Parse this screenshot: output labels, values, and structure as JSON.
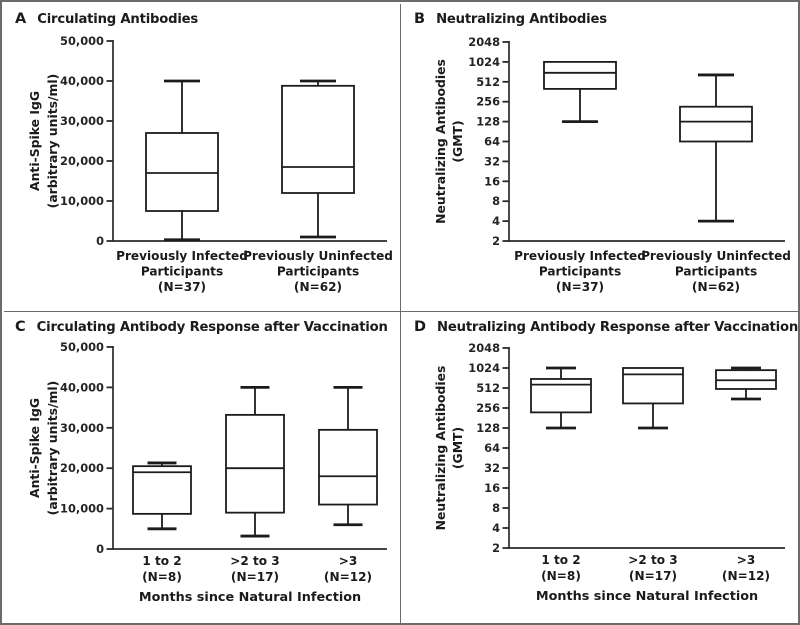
{
  "colors": {
    "background": "#ffffff",
    "frame_border": "#6b6b6b",
    "axis": "#2a2a2a",
    "box_stroke": "#1b1b1b",
    "box_fill": "#ffffff",
    "text": "#1b1b1b"
  },
  "chart_data": [
    {
      "panel_label": "A",
      "title": "Circulating Antibodies",
      "type": "box",
      "scale": "linear",
      "ylim": [
        0,
        50000
      ],
      "yticks": [
        0,
        10000,
        20000,
        30000,
        40000,
        50000
      ],
      "ytick_labels": [
        "0",
        "10,000",
        "20,000",
        "30,000",
        "40,000",
        "50,000"
      ],
      "ylabel_lines": [
        "Anti-Spike IgG",
        "(arbitrary units/ml)"
      ],
      "xlabel": "",
      "legend": "none",
      "grid": false,
      "categories": [
        [
          "Previously Infected",
          "Participants",
          "(N=37)"
        ],
        [
          "Previously Uninfected",
          "Participants",
          "(N=62)"
        ]
      ],
      "boxes": [
        {
          "min": 300,
          "q1": 7500,
          "median": 17000,
          "q3": 27000,
          "max": 40000
        },
        {
          "min": 1000,
          "q1": 12000,
          "median": 18500,
          "q3": 38800,
          "max": 40000
        }
      ]
    },
    {
      "panel_label": "B",
      "title": "Neutralizing Antibodies",
      "type": "box",
      "scale": "log2",
      "ylim": [
        2,
        2048
      ],
      "yticks": [
        2048,
        1024,
        512,
        256,
        128,
        64,
        32,
        16,
        8,
        4,
        2
      ],
      "ytick_labels": [
        "2048",
        "1024",
        "512",
        "256",
        "128",
        "64",
        "32",
        "16",
        "8",
        "4",
        "2"
      ],
      "ylabel_lines": [
        "Neutralizing Antibodies",
        "(GMT)"
      ],
      "xlabel": "",
      "legend": "none",
      "grid": false,
      "categories": [
        [
          "Previously Infected",
          "Participants",
          "(N=37)"
        ],
        [
          "Previously Uninfected",
          "Participants",
          "(N=62)"
        ]
      ],
      "boxes": [
        {
          "min": 128,
          "q1": 400,
          "median": 700,
          "q3": 1024,
          "max": 1024
        },
        {
          "min": 4,
          "q1": 64,
          "median": 128,
          "q3": 215,
          "max": 650
        }
      ]
    },
    {
      "panel_label": "C",
      "title": "Circulating Antibody Response after Vaccination",
      "type": "box",
      "scale": "linear",
      "ylim": [
        0,
        50000
      ],
      "yticks": [
        0,
        10000,
        20000,
        30000,
        40000,
        50000
      ],
      "ytick_labels": [
        "0",
        "10,000",
        "20,000",
        "30,000",
        "40,000",
        "50,000"
      ],
      "ylabel_lines": [
        "Anti-Spike IgG",
        "(arbitrary units/ml)"
      ],
      "xlabel": "Months since Natural Infection",
      "legend": "none",
      "grid": false,
      "categories": [
        [
          "1 to 2",
          "(N=8)"
        ],
        [
          ">2 to 3",
          "(N=17)"
        ],
        [
          ">3",
          "(N=12)"
        ]
      ],
      "boxes": [
        {
          "min": 5000,
          "q1": 8700,
          "median": 19000,
          "q3": 20500,
          "max": 21300
        },
        {
          "min": 3200,
          "q1": 9000,
          "median": 20000,
          "q3": 33200,
          "max": 40000
        },
        {
          "min": 6000,
          "q1": 11000,
          "median": 18000,
          "q3": 29500,
          "max": 40000
        }
      ]
    },
    {
      "panel_label": "D",
      "title": "Neutralizing Antibody Response after Vaccination",
      "type": "box",
      "scale": "log2",
      "ylim": [
        2,
        2048
      ],
      "yticks": [
        2048,
        1024,
        512,
        256,
        128,
        64,
        32,
        16,
        8,
        4,
        2
      ],
      "ytick_labels": [
        "2048",
        "1024",
        "512",
        "256",
        "128",
        "64",
        "32",
        "16",
        "8",
        "4",
        "2"
      ],
      "ylabel_lines": [
        "Neutralizing Antibodies",
        "(GMT)"
      ],
      "xlabel": "Months since Natural Infection",
      "legend": "none",
      "grid": false,
      "categories": [
        [
          "1 to 2",
          "(N=8)"
        ],
        [
          ">2 to 3",
          "(N=17)"
        ],
        [
          ">3",
          "(N=12)"
        ]
      ],
      "boxes": [
        {
          "min": 128,
          "q1": 220,
          "median": 575,
          "q3": 700,
          "max": 1024
        },
        {
          "min": 128,
          "q1": 300,
          "median": 820,
          "q3": 1024,
          "max": 1024
        },
        {
          "min": 350,
          "q1": 495,
          "median": 670,
          "q3": 950,
          "max": 1024
        }
      ]
    }
  ]
}
